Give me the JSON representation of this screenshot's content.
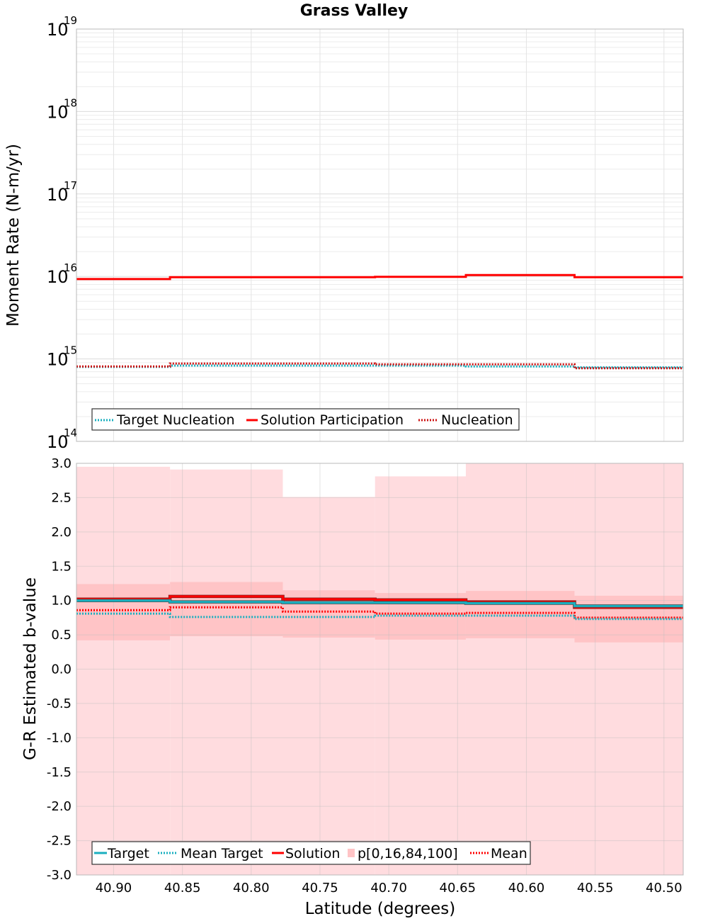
{
  "chart_data": [
    {
      "type": "line",
      "step": true,
      "title": "Grass Valley",
      "xlabel": "",
      "ylabel": "Moment Rate (N-m/yr)",
      "yscale": "log",
      "ylim": [
        100000000000000.0,
        1e+19
      ],
      "yticks": [
        {
          "base": "10",
          "exp": "14"
        },
        {
          "base": "10",
          "exp": "15"
        },
        {
          "base": "10",
          "exp": "16"
        },
        {
          "base": "10",
          "exp": "17"
        },
        {
          "base": "10",
          "exp": "18"
        },
        {
          "base": "10",
          "exp": "19"
        }
      ],
      "xlim": [
        40.927,
        40.486
      ],
      "x_reversed": true,
      "bin_edges": [
        40.927,
        40.859,
        40.777,
        40.71,
        40.644,
        40.565,
        40.486
      ],
      "series": [
        {
          "name": "Target Nucleation",
          "style": "dotted",
          "color": "#1aafbf",
          "values": [
            800000000000000.0,
            830000000000000.0,
            830000000000000.0,
            830000000000000.0,
            810000000000000.0,
            790000000000000.0
          ]
        },
        {
          "name": "Solution Participation",
          "style": "solid",
          "color": "#ff0000",
          "values": [
            9300000000000000.0,
            9800000000000000.0,
            9800000000000000.0,
            9900000000000000.0,
            1.04e+16,
            9800000000000000.0
          ]
        },
        {
          "name": "Nucleation",
          "style": "dotted",
          "color": "#cc1111",
          "values": [
            810000000000000.0,
            880000000000000.0,
            880000000000000.0,
            860000000000000.0,
            860000000000000.0,
            770000000000000.0
          ]
        }
      ],
      "legend": [
        "Target Nucleation",
        "Solution Participation",
        "Nucleation"
      ],
      "legend_position": "bottom-left",
      "grid": true
    },
    {
      "type": "line",
      "step": true,
      "title": "",
      "xlabel": "Latitude (degrees)",
      "ylabel": "G-R Estimated b-value",
      "ylim": [
        -3.0,
        3.0
      ],
      "yticks": [
        "-3.0",
        "-2.5",
        "-2.0",
        "-1.5",
        "-1.0",
        "-0.5",
        "0.0",
        "0.5",
        "1.0",
        "1.5",
        "2.0",
        "2.5",
        "3.0"
      ],
      "xlim": [
        40.927,
        40.486
      ],
      "x_reversed": true,
      "xticks": [
        "40.90",
        "40.85",
        "40.80",
        "40.75",
        "40.70",
        "40.65",
        "40.60",
        "40.55",
        "40.50"
      ],
      "bin_edges": [
        40.927,
        40.859,
        40.777,
        40.71,
        40.644,
        40.565,
        40.486
      ],
      "series": [
        {
          "name": "Target",
          "style": "solid",
          "color": "#1aafbf",
          "values": [
            1.0,
            0.98,
            0.97,
            0.97,
            0.96,
            0.92
          ]
        },
        {
          "name": "Mean Target",
          "style": "dotted",
          "color": "#1aafbf",
          "values": [
            0.81,
            0.76,
            0.76,
            0.78,
            0.78,
            0.73
          ]
        },
        {
          "name": "Solution",
          "style": "solid",
          "color": "#ff0000",
          "values": [
            1.02,
            1.06,
            1.02,
            1.01,
            0.98,
            0.9
          ]
        },
        {
          "name": "Mean",
          "style": "dotted",
          "color": "#ff0000",
          "values": [
            0.86,
            0.9,
            0.84,
            0.81,
            0.82,
            0.75
          ]
        }
      ],
      "bands": {
        "name": "p[0,16,84,100]",
        "p0": [
          -3.0,
          -3.0,
          -3.0,
          -3.0,
          -3.0,
          -3.0
        ],
        "p16": [
          0.42,
          0.48,
          0.46,
          0.43,
          0.45,
          0.39
        ],
        "p84": [
          1.24,
          1.27,
          1.15,
          1.11,
          1.14,
          1.07
        ],
        "p100": [
          2.95,
          2.91,
          2.51,
          2.81,
          3.0,
          3.0
        ],
        "outer_color": "#ffdcdf",
        "inner_color": "#ffc4c6"
      },
      "legend": [
        "Target",
        "Mean Target",
        "Solution",
        "p[0,16,84,100]",
        "Mean"
      ],
      "legend_position": "bottom-left",
      "grid": true
    }
  ]
}
